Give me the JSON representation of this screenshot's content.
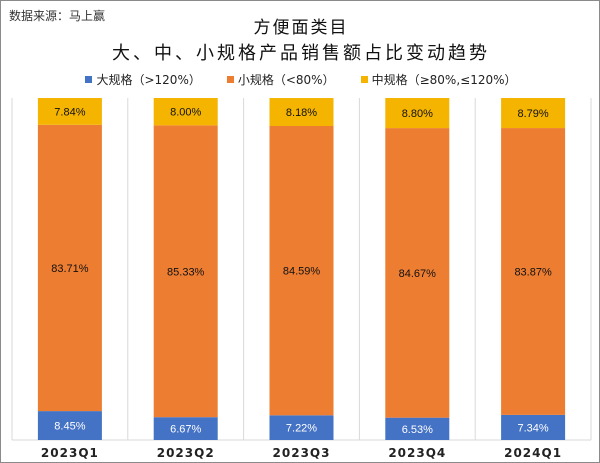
{
  "source": "数据来源：马上赢",
  "chart_data": {
    "type": "bar",
    "stacked": true,
    "title": [
      "方便面类目",
      "大、中、小规格产品销售额占比变动趋势"
    ],
    "categories": [
      "2023Q1",
      "2023Q2",
      "2023Q3",
      "2023Q4",
      "2024Q1"
    ],
    "series": [
      {
        "name": "大规格（>120%）",
        "color": "#4472C4",
        "values": [
          8.45,
          6.67,
          7.22,
          6.53,
          7.34
        ],
        "labels": [
          "8.45%",
          "6.67%",
          "7.22%",
          "6.53%",
          "7.34%"
        ]
      },
      {
        "name": "小规格（<80%）",
        "color": "#ED7D31",
        "values": [
          83.71,
          85.33,
          84.59,
          84.67,
          83.87
        ],
        "labels": [
          "83.71%",
          "85.33%",
          "84.59%",
          "84.67%",
          "83.87%"
        ]
      },
      {
        "name": "中规格（≥80%,≤120%）",
        "color": "#F4B400",
        "values": [
          7.84,
          8.0,
          8.18,
          8.8,
          8.79
        ],
        "labels": [
          "7.84%",
          "8.00%",
          "8.18%",
          "8.80%",
          "8.79%"
        ]
      }
    ],
    "ylim": [
      0,
      100
    ],
    "legend": "top",
    "grid": "vertical separators"
  }
}
